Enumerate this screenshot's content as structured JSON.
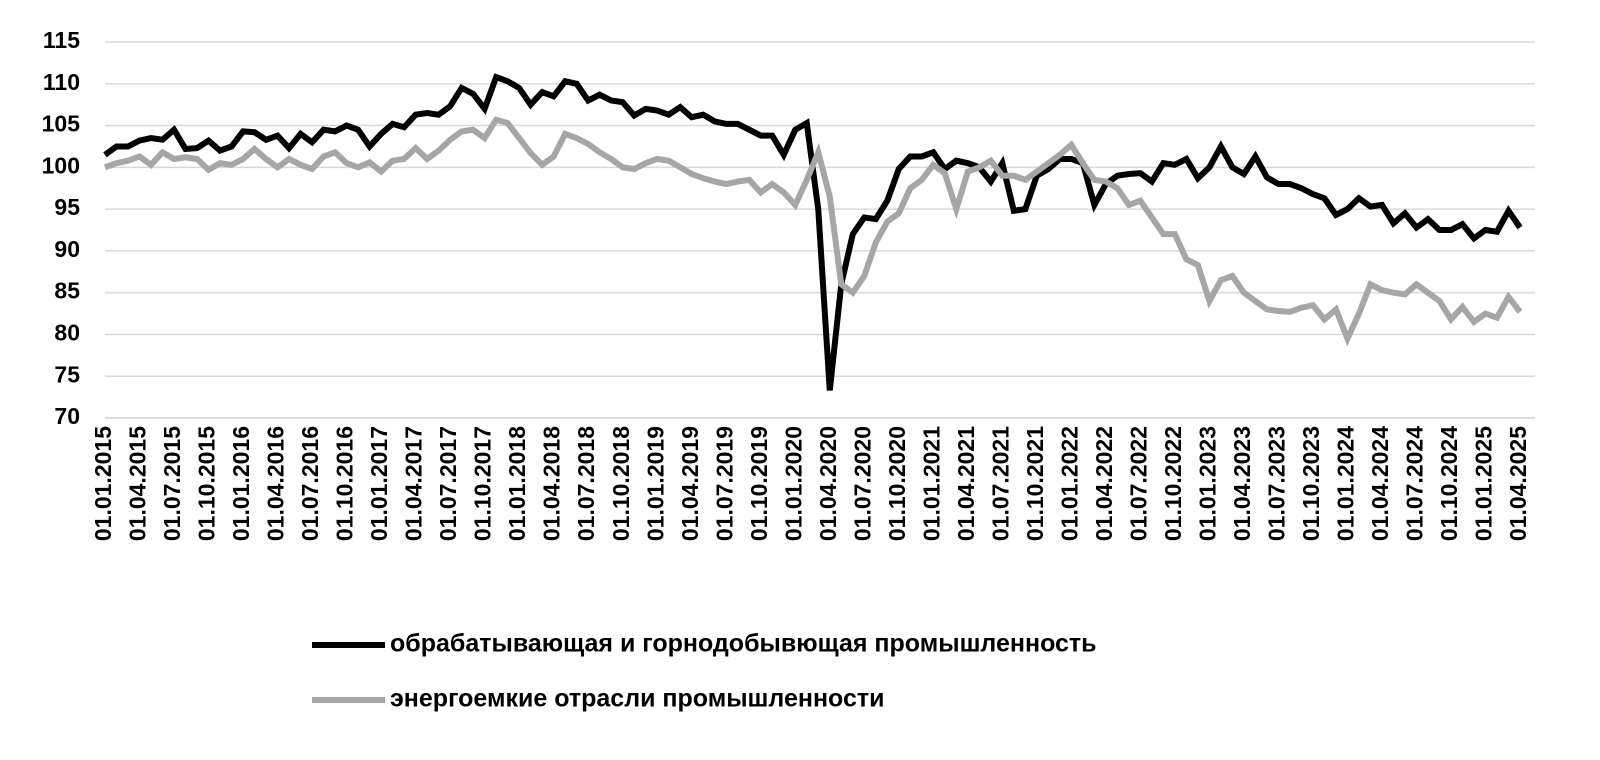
{
  "chart_data": {
    "type": "line",
    "categories": [
      "01.01.2015",
      null,
      null,
      "01.04.2015",
      null,
      null,
      "01.07.2015",
      null,
      null,
      "01.10.2015",
      null,
      null,
      "01.01.2016",
      null,
      null,
      "01.04.2016",
      null,
      null,
      "01.07.2016",
      null,
      null,
      "01.10.2016",
      null,
      null,
      "01.01.2017",
      null,
      null,
      "01.04.2017",
      null,
      null,
      "01.07.2017",
      null,
      null,
      "01.10.2017",
      null,
      null,
      "01.01.2018",
      null,
      null,
      "01.04.2018",
      null,
      null,
      "01.07.2018",
      null,
      null,
      "01.10.2018",
      null,
      null,
      "01.01.2019",
      null,
      null,
      "01.04.2019",
      null,
      null,
      "01.07.2019",
      null,
      null,
      "01.10.2019",
      null,
      null,
      "01.01.2020",
      null,
      null,
      "01.04.2020",
      null,
      null,
      "01.07.2020",
      null,
      null,
      "01.10.2020",
      null,
      null,
      "01.01.2021",
      null,
      null,
      "01.04.2021",
      null,
      null,
      "01.07.2021",
      null,
      null,
      "01.10.2021",
      null,
      null,
      "01.01.2022",
      null,
      null,
      "01.04.2022",
      null,
      null,
      "01.07.2022",
      null,
      null,
      "01.10.2022",
      null,
      null,
      "01.01.2023",
      null,
      null,
      "01.04.2023",
      null,
      null,
      "01.07.2023",
      null,
      null,
      "01.10.2023",
      null,
      null,
      "01.01.2024",
      null,
      null,
      "01.04.2024",
      null,
      null,
      "01.07.2024",
      null,
      null,
      "01.10.2024",
      null,
      null,
      "01.01.2025",
      null,
      null,
      "01.04.2025"
    ],
    "series": [
      {
        "name": "обрабатывающая и горнодобывющая промышленность",
        "color": "#000000",
        "values": [
          101.5,
          102.5,
          102.5,
          103.2,
          103.5,
          103.3,
          104.5,
          102.2,
          102.3,
          103.2,
          102.0,
          102.5,
          104.3,
          104.2,
          103.3,
          103.8,
          102.3,
          104.0,
          103.0,
          104.5,
          104.3,
          105.0,
          104.5,
          102.5,
          104.0,
          105.2,
          104.8,
          106.3,
          106.5,
          106.3,
          107.3,
          109.5,
          108.8,
          107.0,
          110.8,
          110.3,
          109.5,
          107.5,
          109.0,
          108.5,
          110.3,
          110.0,
          108.0,
          108.7,
          108.0,
          107.8,
          106.2,
          107.0,
          106.8,
          106.3,
          107.2,
          106.0,
          106.3,
          105.5,
          105.2,
          105.2,
          104.5,
          103.8,
          103.8,
          101.5,
          104.5,
          105.3,
          95.0,
          73.3,
          86.0,
          92.0,
          94.0,
          93.8,
          96.0,
          99.8,
          101.3,
          101.3,
          101.8,
          99.8,
          100.8,
          100.5,
          100.0,
          98.3,
          100.5,
          94.8,
          95.0,
          99.0,
          99.8,
          101.0,
          101.0,
          100.5,
          95.5,
          98.0,
          99.0,
          99.2,
          99.3,
          98.3,
          100.5,
          100.3,
          101.0,
          98.7,
          100.0,
          102.5,
          100.0,
          99.2,
          101.3,
          98.8,
          98.0,
          98.0,
          97.5,
          96.8,
          96.3,
          94.3,
          95.0,
          96.3,
          95.3,
          95.5,
          93.3,
          94.5,
          92.8,
          93.8,
          92.5,
          92.5,
          93.2,
          91.5,
          92.5,
          92.3,
          94.8,
          92.8
        ]
      },
      {
        "name": "энергоемкие отрасли промышленности",
        "color": "#a6a6a6",
        "values": [
          100.0,
          100.5,
          100.8,
          101.3,
          100.3,
          101.8,
          101.0,
          101.2,
          101.0,
          99.7,
          100.5,
          100.3,
          101.0,
          102.2,
          101.0,
          100.0,
          101.0,
          100.3,
          99.8,
          101.3,
          101.8,
          100.5,
          100.0,
          100.6,
          99.5,
          100.8,
          101.0,
          102.3,
          101.0,
          102.0,
          103.3,
          104.3,
          104.5,
          103.5,
          105.7,
          105.3,
          103.5,
          101.7,
          100.3,
          101.3,
          104.0,
          103.5,
          102.8,
          101.8,
          101.0,
          100.0,
          99.8,
          100.5,
          101.0,
          100.8,
          100.0,
          99.2,
          98.7,
          98.3,
          98.0,
          98.3,
          98.5,
          97.0,
          98.0,
          97.0,
          95.5,
          98.5,
          101.8,
          96.5,
          86.0,
          85.0,
          87.0,
          91.0,
          93.5,
          94.5,
          97.5,
          98.5,
          100.3,
          99.3,
          95.0,
          99.5,
          100.0,
          100.8,
          99.0,
          99.0,
          98.5,
          99.5,
          100.5,
          101.5,
          102.7,
          100.5,
          98.5,
          98.3,
          97.5,
          95.5,
          96.0,
          94.0,
          92.0,
          92.0,
          89.0,
          88.3,
          84.0,
          86.5,
          87.0,
          85.0,
          84.0,
          83.0,
          82.8,
          82.7,
          83.2,
          83.5,
          81.8,
          83.0,
          79.5,
          82.5,
          86.0,
          85.3,
          85.0,
          84.8,
          86.0,
          85.0,
          84.0,
          81.8,
          83.3,
          81.5,
          82.5,
          82.0,
          84.5,
          82.7
        ]
      }
    ],
    "ylim": [
      70,
      115
    ],
    "yticks": [
      70,
      75,
      80,
      85,
      90,
      95,
      100,
      105,
      110,
      115
    ],
    "grid": true,
    "legend": "bottom"
  }
}
